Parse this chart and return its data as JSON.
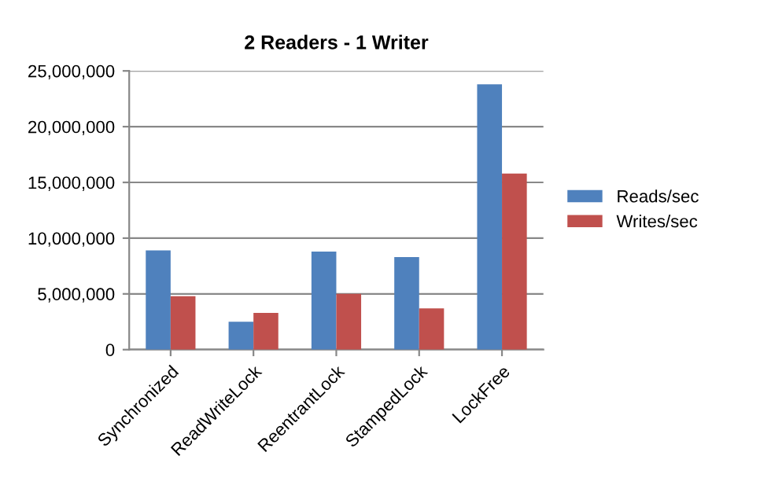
{
  "chart_data": {
    "type": "bar",
    "title": "2 Readers - 1 Writer",
    "categories": [
      "Synchronized",
      "ReadWriteLock",
      "ReentrantLock",
      "StampedLock",
      "LockFree"
    ],
    "series": [
      {
        "name": "Reads/sec",
        "color": "#4f81bd",
        "values": [
          8900000,
          2500000,
          8800000,
          8300000,
          23800000
        ]
      },
      {
        "name": "Writes/sec",
        "color": "#c0504d",
        "values": [
          4800000,
          3300000,
          5000000,
          3700000,
          15800000
        ]
      }
    ],
    "ylim": [
      0,
      25000000
    ],
    "yticks": [
      {
        "value": 0,
        "label": "0"
      },
      {
        "value": 5000000,
        "label": "5,000,000"
      },
      {
        "value": 10000000,
        "label": "10,000,000"
      },
      {
        "value": 15000000,
        "label": "15,000,000"
      },
      {
        "value": 20000000,
        "label": "20,000,000"
      },
      {
        "value": 25000000,
        "label": "25,000,000"
      }
    ],
    "grid": "y",
    "legend": "right"
  }
}
